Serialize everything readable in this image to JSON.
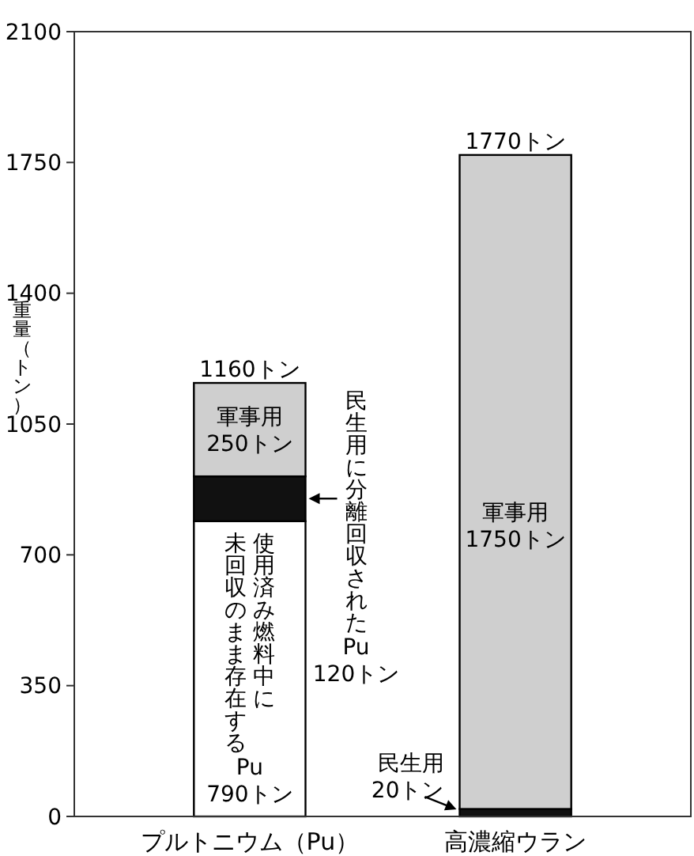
{
  "chart_data": {
    "type": "bar",
    "stacked": true,
    "ylabel": "重量（トン）",
    "categories": [
      "プルトニウム（Pu）",
      "高濃縮ウラン"
    ],
    "series": [
      {
        "color": "#ffffff",
        "values": [
          790,
          0
        ]
      },
      {
        "color": "#111111",
        "values": [
          120,
          20
        ]
      },
      {
        "color": "#cfcfcf",
        "values": [
          250,
          1750
        ]
      }
    ],
    "totals": [
      "1160トン",
      "1770トン"
    ],
    "ylim": [
      0,
      2100
    ],
    "yticks": [
      0,
      350,
      700,
      1050,
      1400,
      1750,
      2100
    ],
    "annotations": [
      "軍事用\n250トン",
      "使用済み燃料中に",
      "未回収のまま存在する\nPu\n790トン",
      "民生用に分離回収された\nPu\n120トン",
      "軍事用\n1750トン",
      "民生用\n20トン"
    ]
  }
}
